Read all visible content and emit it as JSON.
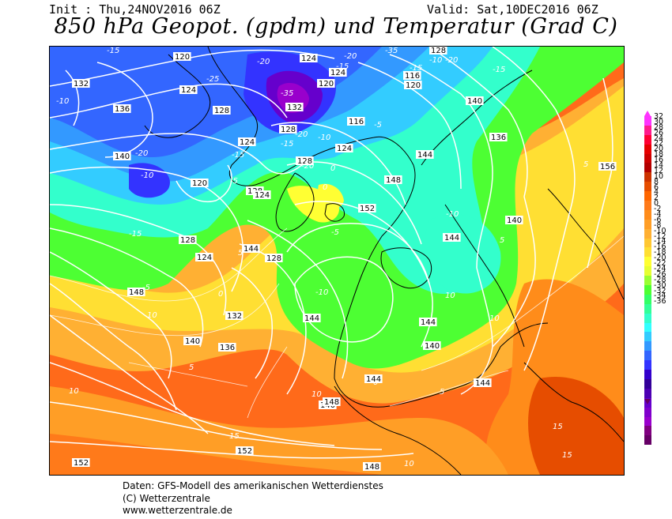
{
  "header": {
    "init": "Init : Thu,24NOV2016 06Z",
    "valid": "Valid: Sat,10DEC2016 06Z",
    "title": "850 hPa Geopot. (gpdm) und Temperatur (Grad C)"
  },
  "map": {
    "geopotential_labels": [
      "120",
      "124",
      "128",
      "132",
      "136",
      "140",
      "144",
      "148",
      "152",
      "156",
      "116"
    ],
    "temperature_labels": [
      "-35",
      "-25",
      "-20",
      "-15",
      "-10",
      "-5",
      "0",
      "5",
      "10",
      "15"
    ],
    "labels": [
      {
        "text": "-15",
        "kind": "temp",
        "c": "white"
      },
      {
        "text": "120",
        "kind": "geo",
        "c": "white"
      },
      {
        "text": "-25",
        "kind": "temp",
        "c": "white"
      },
      {
        "text": "-20",
        "kind": "temp",
        "c": "white"
      },
      {
        "text": "124",
        "kind": "geo",
        "c": "white"
      },
      {
        "text": "-20",
        "kind": "temp",
        "c": "white"
      },
      {
        "text": "-35",
        "kind": "temp",
        "c": "white"
      },
      {
        "text": "124",
        "kind": "geo",
        "c": "white"
      },
      {
        "text": "120",
        "kind": "geo",
        "c": "white"
      },
      {
        "text": "-15",
        "kind": "temp",
        "c": "white"
      },
      {
        "text": "128",
        "kind": "geo",
        "c": "white"
      },
      {
        "text": "-20",
        "kind": "temp",
        "c": "white"
      },
      {
        "text": "-15",
        "kind": "temp",
        "c": "white"
      },
      {
        "text": "116",
        "kind": "geo",
        "c": "white"
      },
      {
        "text": "120",
        "kind": "geo",
        "c": "white"
      },
      {
        "text": "-10",
        "kind": "temp",
        "c": "white"
      },
      {
        "text": "-15",
        "kind": "temp",
        "c": "white"
      },
      {
        "text": "132",
        "kind": "geo",
        "c": "white"
      },
      {
        "text": "-10",
        "kind": "temp",
        "c": "white"
      },
      {
        "text": "136",
        "kind": "geo",
        "c": "white"
      },
      {
        "text": "124",
        "kind": "geo",
        "c": "white"
      },
      {
        "text": "-35",
        "kind": "temp",
        "c": "white"
      },
      {
        "text": "132",
        "kind": "geo",
        "c": "white"
      },
      {
        "text": "128",
        "kind": "geo",
        "c": "white"
      },
      {
        "text": "140",
        "kind": "geo",
        "c": "white"
      },
      {
        "text": "116",
        "kind": "geo",
        "c": "white"
      },
      {
        "text": "-5",
        "kind": "temp",
        "c": "white"
      },
      {
        "text": "128",
        "kind": "geo",
        "c": "white"
      },
      {
        "text": "124",
        "kind": "geo",
        "c": "white"
      },
      {
        "text": "-20",
        "kind": "temp",
        "c": "white"
      },
      {
        "text": "-10",
        "kind": "temp",
        "c": "white"
      },
      {
        "text": "136",
        "kind": "geo",
        "c": "white"
      },
      {
        "text": "140",
        "kind": "geo",
        "c": "white"
      },
      {
        "text": "-20",
        "kind": "temp",
        "c": "white"
      },
      {
        "text": "-10",
        "kind": "temp",
        "c": "white"
      },
      {
        "text": "-15",
        "kind": "temp",
        "c": "white"
      },
      {
        "text": "-15",
        "kind": "temp",
        "c": "white"
      },
      {
        "text": "128",
        "kind": "geo",
        "c": "white"
      },
      {
        "text": "124",
        "kind": "geo",
        "c": "white"
      },
      {
        "text": "144",
        "kind": "geo",
        "c": "white"
      },
      {
        "text": "-20",
        "kind": "temp",
        "c": "white"
      },
      {
        "text": "120",
        "kind": "geo",
        "c": "white"
      },
      {
        "text": "-5",
        "kind": "temp",
        "c": "white"
      },
      {
        "text": "128",
        "kind": "geo",
        "c": "white"
      },
      {
        "text": "0",
        "kind": "temp",
        "c": "white"
      },
      {
        "text": "0",
        "kind": "temp",
        "c": "white"
      },
      {
        "text": "124",
        "kind": "geo",
        "c": "white"
      },
      {
        "text": "148",
        "kind": "geo",
        "c": "white"
      },
      {
        "text": "5",
        "kind": "temp",
        "c": "white"
      },
      {
        "text": "156",
        "kind": "geo",
        "c": "white"
      },
      {
        "text": "152",
        "kind": "geo",
        "c": "white"
      },
      {
        "text": "140",
        "kind": "geo",
        "c": "white"
      },
      {
        "text": "-15",
        "kind": "temp",
        "c": "white"
      },
      {
        "text": "-5",
        "kind": "temp",
        "c": "white"
      },
      {
        "text": "144",
        "kind": "geo",
        "c": "white"
      },
      {
        "text": "128",
        "kind": "geo",
        "c": "white"
      },
      {
        "text": "-10",
        "kind": "temp",
        "c": "white"
      },
      {
        "text": "128",
        "kind": "geo",
        "c": "white"
      },
      {
        "text": "5",
        "kind": "temp",
        "c": "white"
      },
      {
        "text": "144",
        "kind": "geo",
        "c": "white"
      },
      {
        "text": "5",
        "kind": "temp",
        "c": "white"
      },
      {
        "text": "124",
        "kind": "geo",
        "c": "white"
      },
      {
        "text": "-5",
        "kind": "temp",
        "c": "white"
      },
      {
        "text": "148",
        "kind": "geo",
        "c": "white"
      },
      {
        "text": "-10",
        "kind": "temp",
        "c": "white"
      },
      {
        "text": "10",
        "kind": "temp",
        "c": "white"
      },
      {
        "text": "0",
        "kind": "temp",
        "c": "white"
      },
      {
        "text": "10",
        "kind": "temp",
        "c": "white"
      },
      {
        "text": "132",
        "kind": "geo",
        "c": "white"
      },
      {
        "text": "144",
        "kind": "geo",
        "c": "white"
      },
      {
        "text": "144",
        "kind": "geo",
        "c": "white"
      },
      {
        "text": "10",
        "kind": "temp",
        "c": "white"
      },
      {
        "text": "136",
        "kind": "geo",
        "c": "white"
      },
      {
        "text": "140",
        "kind": "geo",
        "c": "white"
      },
      {
        "text": "5",
        "kind": "temp",
        "c": "white"
      },
      {
        "text": "140",
        "kind": "geo",
        "c": "white"
      },
      {
        "text": "144",
        "kind": "geo",
        "c": "white"
      },
      {
        "text": "5",
        "kind": "temp",
        "c": "white"
      },
      {
        "text": "10",
        "kind": "temp",
        "c": "white"
      },
      {
        "text": "0",
        "kind": "temp",
        "c": "white"
      },
      {
        "text": "10",
        "kind": "temp",
        "c": "white"
      },
      {
        "text": "144",
        "kind": "geo",
        "c": "white"
      },
      {
        "text": "5",
        "kind": "temp",
        "c": "white"
      },
      {
        "text": "140",
        "kind": "geo",
        "c": "white"
      },
      {
        "text": "148",
        "kind": "geo",
        "c": "white"
      },
      {
        "text": "15",
        "kind": "temp",
        "c": "white"
      },
      {
        "text": "15",
        "kind": "temp",
        "c": "white"
      },
      {
        "text": "15",
        "kind": "temp",
        "c": "white"
      },
      {
        "text": "152",
        "kind": "geo",
        "c": "white"
      },
      {
        "text": "152",
        "kind": "geo",
        "c": "white"
      },
      {
        "text": "148",
        "kind": "geo",
        "c": "white"
      },
      {
        "text": "10",
        "kind": "temp",
        "c": "white"
      }
    ]
  },
  "colorbar": {
    "labels": [
      "32",
      "30",
      "28",
      "26",
      "24",
      "22",
      "20",
      "18",
      "16",
      "14",
      "12",
      "10",
      "8",
      "6",
      "4",
      "2",
      "0",
      "-2",
      "-4",
      "-6",
      "-8",
      "-10",
      "-12",
      "-14",
      "-16",
      "-18",
      "-20",
      "-22",
      "-24",
      "-26",
      "-28",
      "-30",
      "-32",
      "-34",
      "-36"
    ],
    "colors": [
      "#ff33ff",
      "#ff1a8c",
      "#ff0033",
      "#e60000",
      "#cc0000",
      "#b30000",
      "#cc3300",
      "#e64d00",
      "#ff6600",
      "#ff7a1a",
      "#ff8c1a",
      "#ff9e26",
      "#ffb033",
      "#ffc733",
      "#ffdf33",
      "#ffff33",
      "#e6ff33",
      "#99ff33",
      "#4dff33",
      "#33ff66",
      "#33ff99",
      "#33ffcc",
      "#33ffff",
      "#33ccff",
      "#3399ff",
      "#3366ff",
      "#3333ff",
      "#3300cc",
      "#330099",
      "#4d00b3",
      "#6600cc",
      "#8000cc",
      "#9900cc",
      "#800080",
      "#660066"
    ]
  },
  "footer": {
    "line1": "Daten: GFS-Modell des amerikanischen Wetterdienstes",
    "line2": "(C) Wetterzentrale",
    "line3": "www.wetterzentrale.de"
  }
}
